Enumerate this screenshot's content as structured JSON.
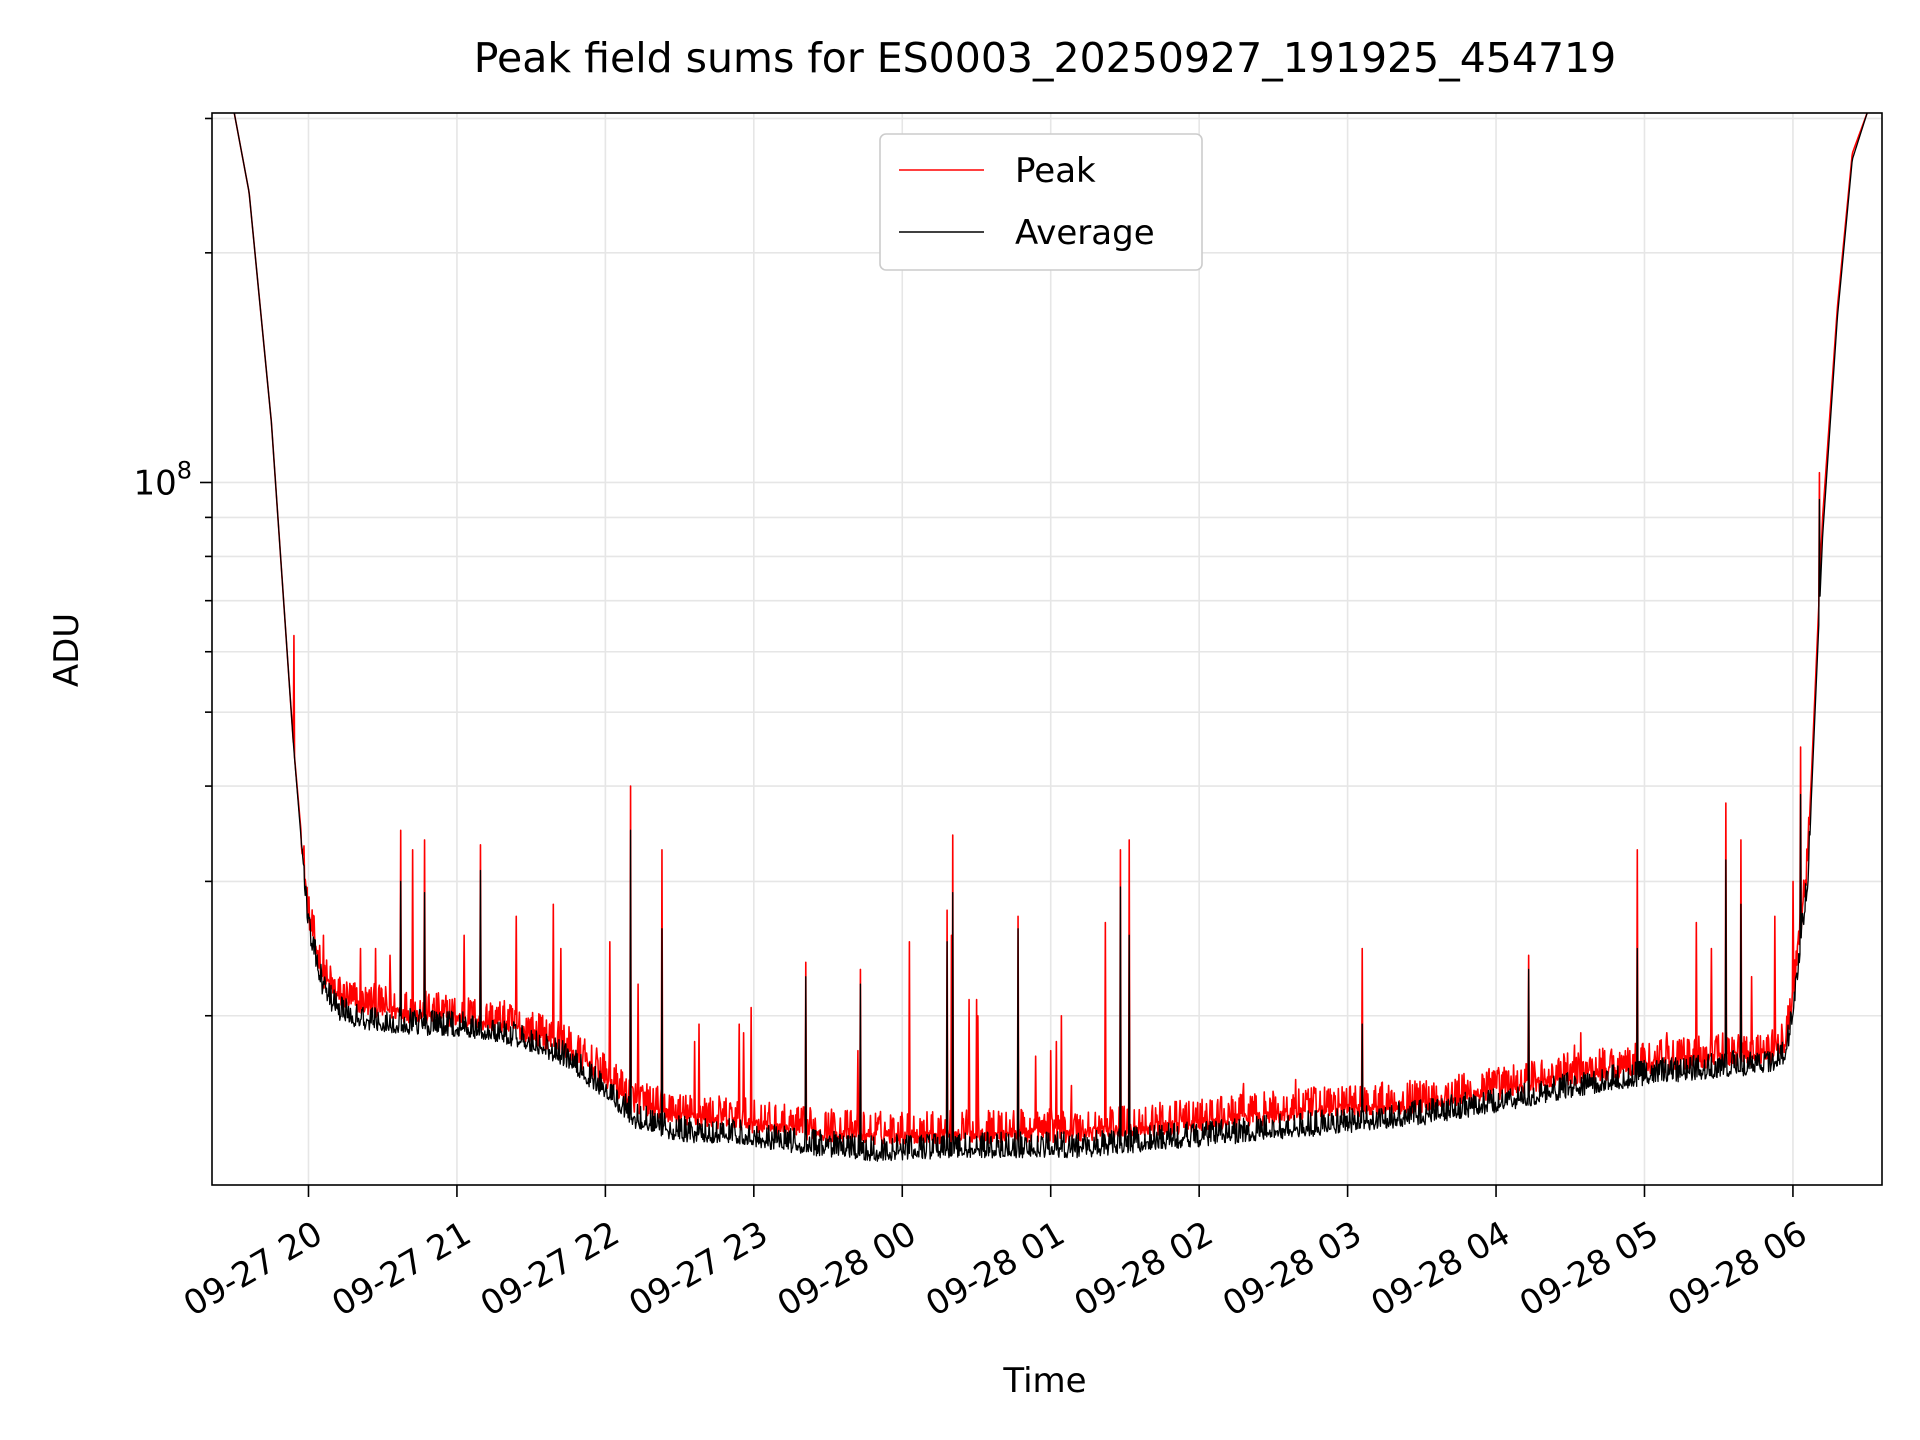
{
  "chart_data": {
    "type": "line",
    "title": "Peak field sums for ES0003_20250927_191925_454719",
    "xlabel": "Time",
    "ylabel": "ADU",
    "yscale": "log",
    "ylim": [
      12000000,
      305000000
    ],
    "xlim": [
      19.35,
      30.6
    ],
    "grid": true,
    "legend_position": "top-center",
    "x_unit": "hours since 2025-09-27 00:00",
    "xticks": [
      {
        "value": 20,
        "label": "09-27 20"
      },
      {
        "value": 21,
        "label": "09-27 21"
      },
      {
        "value": 22,
        "label": "09-27 22"
      },
      {
        "value": 23,
        "label": "09-27 23"
      },
      {
        "value": 24,
        "label": "09-28 00"
      },
      {
        "value": 25,
        "label": "09-28 01"
      },
      {
        "value": 26,
        "label": "09-28 02"
      },
      {
        "value": 27,
        "label": "09-28 03"
      },
      {
        "value": 28,
        "label": "09-28 04"
      },
      {
        "value": 29,
        "label": "09-28 05"
      },
      {
        "value": 30,
        "label": "09-28 06"
      }
    ],
    "yticks_major": [
      {
        "value": 100000000,
        "base": "10",
        "exp": "8"
      }
    ],
    "yticks_minor": [
      20000000,
      30000000,
      40000000,
      50000000,
      60000000,
      70000000,
      80000000,
      90000000,
      200000000,
      300000000
    ],
    "series": [
      {
        "name": "Peak",
        "color": "#ff0000",
        "baseline": [
          [
            19.5,
            305000000
          ],
          [
            19.6,
            240000000
          ],
          [
            19.75,
            120000000
          ],
          [
            19.9,
            45000000
          ],
          [
            20.0,
            27000000
          ],
          [
            20.1,
            22500000
          ],
          [
            20.2,
            21200000
          ],
          [
            20.35,
            20700000
          ],
          [
            20.6,
            20300000
          ],
          [
            21.0,
            19900000
          ],
          [
            21.3,
            19600000
          ],
          [
            21.7,
            18400000
          ],
          [
            22.0,
            16600000
          ],
          [
            22.2,
            15400000
          ],
          [
            22.5,
            14800000
          ],
          [
            22.9,
            14600000
          ],
          [
            23.3,
            14200000
          ],
          [
            23.8,
            14000000
          ],
          [
            24.5,
            14050000
          ],
          [
            25.2,
            14100000
          ],
          [
            25.8,
            14400000
          ],
          [
            26.4,
            14800000
          ],
          [
            27.0,
            15200000
          ],
          [
            27.5,
            15400000
          ],
          [
            28.0,
            16000000
          ],
          [
            28.5,
            16700000
          ],
          [
            29.0,
            17300000
          ],
          [
            29.5,
            17700000
          ],
          [
            29.85,
            17900000
          ],
          [
            29.95,
            18500000
          ],
          [
            30.0,
            21000000
          ],
          [
            30.1,
            32000000
          ],
          [
            30.2,
            90000000
          ],
          [
            30.3,
            170000000
          ],
          [
            30.4,
            270000000
          ],
          [
            30.5,
            305000000
          ]
        ],
        "noise": 0.045,
        "spikes": [
          [
            19.9,
            63000000
          ],
          [
            20.1,
            25500000
          ],
          [
            20.35,
            24500000
          ],
          [
            20.45,
            24500000
          ],
          [
            20.55,
            24000000
          ],
          [
            20.62,
            35000000
          ],
          [
            20.7,
            33000000
          ],
          [
            20.78,
            34000000
          ],
          [
            21.05,
            25500000
          ],
          [
            21.16,
            33500000
          ],
          [
            21.4,
            27000000
          ],
          [
            21.65,
            28000000
          ],
          [
            21.7,
            24500000
          ],
          [
            22.03,
            25000000
          ],
          [
            22.17,
            40000000
          ],
          [
            22.22,
            22000000
          ],
          [
            22.38,
            33000000
          ],
          [
            22.6,
            18500000
          ],
          [
            22.63,
            19500000
          ],
          [
            22.9,
            19500000
          ],
          [
            22.93,
            19000000
          ],
          [
            22.98,
            20500000
          ],
          [
            23.35,
            23500000
          ],
          [
            23.7,
            18000000
          ],
          [
            23.72,
            23000000
          ],
          [
            24.05,
            25000000
          ],
          [
            24.3,
            27500000
          ],
          [
            24.33,
            25500000
          ],
          [
            24.34,
            34500000
          ],
          [
            24.45,
            21000000
          ],
          [
            24.5,
            21000000
          ],
          [
            24.51,
            20000000
          ],
          [
            24.78,
            27000000
          ],
          [
            24.9,
            17700000
          ],
          [
            25.0,
            18000000
          ],
          [
            25.04,
            18500000
          ],
          [
            25.07,
            20000000
          ],
          [
            25.14,
            16200000
          ],
          [
            25.37,
            26500000
          ],
          [
            25.47,
            33000000
          ],
          [
            25.53,
            34000000
          ],
          [
            26.3,
            16300000
          ],
          [
            26.65,
            16500000
          ],
          [
            27.1,
            24500000
          ],
          [
            28.22,
            24000000
          ],
          [
            28.53,
            18300000
          ],
          [
            28.57,
            19000000
          ],
          [
            28.73,
            18000000
          ],
          [
            28.9,
            18000000
          ],
          [
            28.95,
            33000000
          ],
          [
            29.15,
            19000000
          ],
          [
            29.35,
            26500000
          ],
          [
            29.45,
            24500000
          ],
          [
            29.55,
            38000000
          ],
          [
            29.65,
            34000000
          ],
          [
            29.72,
            22500000
          ],
          [
            29.88,
            27000000
          ],
          [
            30.0,
            30000000
          ],
          [
            30.05,
            45000000
          ],
          [
            30.18,
            103000000
          ]
        ]
      },
      {
        "name": "Average",
        "color": "#000000",
        "baseline": [
          [
            19.5,
            305000000
          ],
          [
            19.6,
            240000000
          ],
          [
            19.75,
            120000000
          ],
          [
            19.9,
            45000000
          ],
          [
            20.0,
            26000000
          ],
          [
            20.1,
            21500000
          ],
          [
            20.2,
            20200000
          ],
          [
            20.35,
            19700000
          ],
          [
            20.6,
            19400000
          ],
          [
            21.0,
            19200000
          ],
          [
            21.3,
            18900000
          ],
          [
            21.7,
            17700000
          ],
          [
            22.0,
            15900000
          ],
          [
            22.2,
            14600000
          ],
          [
            22.5,
            14000000
          ],
          [
            22.9,
            13900000
          ],
          [
            23.3,
            13500000
          ],
          [
            23.8,
            13200000
          ],
          [
            24.5,
            13350000
          ],
          [
            25.2,
            13350000
          ],
          [
            25.8,
            13700000
          ],
          [
            26.4,
            14000000
          ],
          [
            27.0,
            14400000
          ],
          [
            27.5,
            14700000
          ],
          [
            28.0,
            15300000
          ],
          [
            28.5,
            16000000
          ],
          [
            29.0,
            16600000
          ],
          [
            29.5,
            17000000
          ],
          [
            29.85,
            17200000
          ],
          [
            29.95,
            17800000
          ],
          [
            30.0,
            20000000
          ],
          [
            30.1,
            30000000
          ],
          [
            30.2,
            85000000
          ],
          [
            30.3,
            165000000
          ],
          [
            30.4,
            265000000
          ],
          [
            30.5,
            305000000
          ]
        ],
        "noise": 0.035,
        "spikes": [
          [
            20.62,
            30000000
          ],
          [
            20.78,
            29000000
          ],
          [
            21.16,
            31000000
          ],
          [
            22.17,
            35000000
          ],
          [
            22.38,
            26000000
          ],
          [
            23.35,
            22500000
          ],
          [
            23.72,
            22000000
          ],
          [
            24.3,
            25000000
          ],
          [
            24.34,
            29000000
          ],
          [
            24.78,
            26000000
          ],
          [
            25.47,
            29500000
          ],
          [
            25.53,
            25500000
          ],
          [
            27.1,
            19500000
          ],
          [
            28.22,
            23000000
          ],
          [
            28.95,
            24500000
          ],
          [
            29.55,
            32000000
          ],
          [
            29.65,
            28000000
          ],
          [
            30.05,
            39000000
          ],
          [
            30.18,
            95000000
          ]
        ]
      }
    ]
  }
}
